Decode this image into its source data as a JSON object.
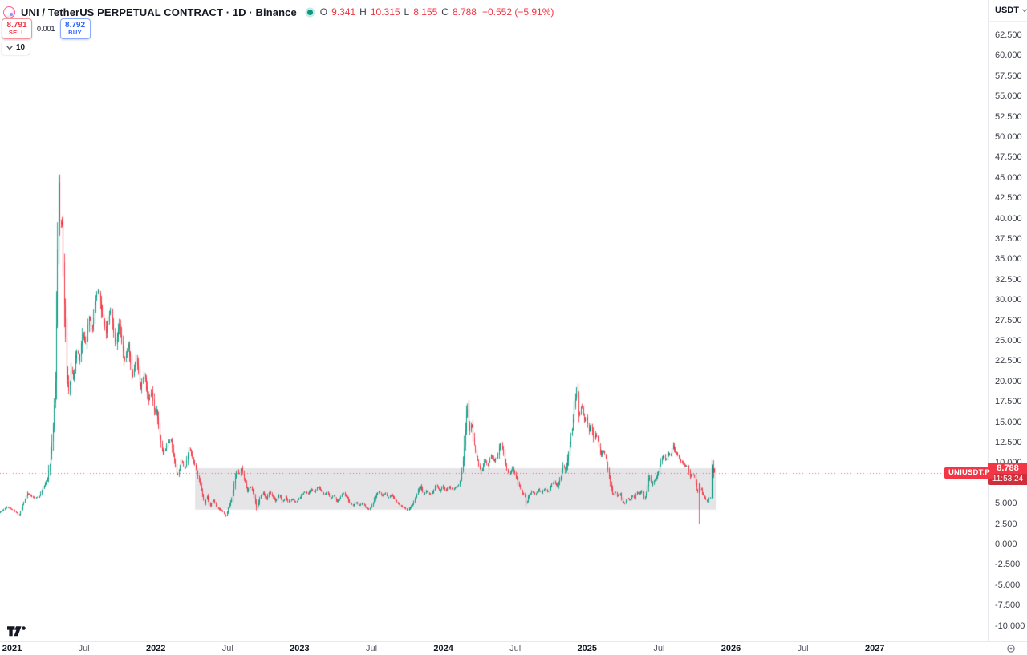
{
  "header": {
    "symbol_title": "UNI / TetherUS PERPETUAL CONTRACT · 1D · Binance",
    "ohlc": {
      "o_label": "O",
      "o": "9.341",
      "h_label": "H",
      "h": "10.315",
      "l_label": "L",
      "l": "8.155",
      "c_label": "C",
      "c": "8.788",
      "change": "−0.552 (−5.91%)"
    }
  },
  "trade_panel": {
    "sell_price": "8.791",
    "sell_label": "SELL",
    "spread": "0.001",
    "buy_price": "8.792",
    "buy_label": "BUY",
    "lot_size": "10"
  },
  "price_axis": {
    "currency": "USDT",
    "ticks": [
      "62.500",
      "60.000",
      "57.500",
      "55.000",
      "52.500",
      "50.000",
      "47.500",
      "45.000",
      "42.500",
      "40.000",
      "37.500",
      "35.000",
      "32.500",
      "30.000",
      "27.500",
      "25.000",
      "22.500",
      "20.000",
      "17.500",
      "15.000",
      "12.500",
      "10.000",
      "5.000",
      "2.500",
      "0.000",
      "-2.500",
      "-5.000",
      "-7.500",
      "-10.000"
    ],
    "last_price": "8.788",
    "countdown": "11:53:24"
  },
  "time_axis": {
    "ticks": [
      {
        "label": "2021",
        "major": true
      },
      {
        "label": "Jul",
        "major": false
      },
      {
        "label": "2022",
        "major": true
      },
      {
        "label": "Jul",
        "major": false
      },
      {
        "label": "2023",
        "major": true
      },
      {
        "label": "Jul",
        "major": false
      },
      {
        "label": "2024",
        "major": true
      },
      {
        "label": "Jul",
        "major": false
      },
      {
        "label": "2025",
        "major": true
      },
      {
        "label": "Jul",
        "major": false
      },
      {
        "label": "2026",
        "major": true
      },
      {
        "label": "Jul",
        "major": false
      },
      {
        "label": "2027",
        "major": true
      }
    ]
  },
  "price_line_label": {
    "symbol": "UNIUSDT.P"
  },
  "colors": {
    "up": "#089981",
    "down": "#f23645",
    "accent_blue": "#2962ff",
    "box_fill": "rgba(145,148,158,0.24)",
    "price_line": "rgba(242,54,69,0.75)"
  },
  "chart_data": {
    "type": "candlestick",
    "symbol": "UNIUSDT.P",
    "exchange": "Binance",
    "interval": "1D",
    "x_unit": "decimal_year",
    "x_range": [
      2020.917,
      2027.75
    ],
    "y_axis_range_visible": [
      -11.9,
      66.8
    ],
    "grid": false,
    "last_price": 8.788,
    "t_start": 2020.917,
    "t_end": 2025.838,
    "range_box": {
      "t1": 2022.267,
      "t2": 2025.878,
      "top": 9.35,
      "bottom": 4.25
    },
    "keypoints": [
      [
        2020.917,
        3.9
      ],
      [
        2020.972,
        4.6
      ],
      [
        2021.017,
        4.2
      ],
      [
        2021.056,
        3.6
      ],
      [
        2021.083,
        4.9
      ],
      [
        2021.111,
        6.3
      ],
      [
        2021.156,
        5.7
      ],
      [
        2021.194,
        5.8
      ],
      [
        2021.222,
        7.0
      ],
      [
        2021.25,
        8.0
      ],
      [
        2021.272,
        10.5
      ],
      [
        2021.289,
        14.0
      ],
      [
        2021.306,
        20.0
      ],
      [
        2021.317,
        30.0
      ],
      [
        2021.328,
        44.9
      ],
      [
        2021.339,
        38.0
      ],
      [
        2021.35,
        41.0
      ],
      [
        2021.367,
        30.0
      ],
      [
        2021.383,
        21.5
      ],
      [
        2021.4,
        18.5
      ],
      [
        2021.417,
        22.0
      ],
      [
        2021.433,
        20.0
      ],
      [
        2021.45,
        24.0
      ],
      [
        2021.472,
        22.5
      ],
      [
        2021.494,
        26.0
      ],
      [
        2021.517,
        24.5
      ],
      [
        2021.539,
        28.0
      ],
      [
        2021.561,
        26.5
      ],
      [
        2021.583,
        30.0
      ],
      [
        2021.606,
        31.5
      ],
      [
        2021.628,
        28.5
      ],
      [
        2021.656,
        26.0
      ],
      [
        2021.689,
        29.0
      ],
      [
        2021.722,
        24.5
      ],
      [
        2021.75,
        27.0
      ],
      [
        2021.783,
        22.5
      ],
      [
        2021.811,
        24.5
      ],
      [
        2021.839,
        20.5
      ],
      [
        2021.867,
        23.0
      ],
      [
        2021.894,
        19.0
      ],
      [
        2021.922,
        21.0
      ],
      [
        2021.95,
        17.5
      ],
      [
        2021.972,
        19.0
      ],
      [
        2021.994,
        16.0
      ],
      [
        2022.006,
        16.5
      ],
      [
        2022.028,
        13.5
      ],
      [
        2022.05,
        11.0
      ],
      [
        2022.078,
        12.2
      ],
      [
        2022.106,
        12.9
      ],
      [
        2022.128,
        10.5
      ],
      [
        2022.15,
        8.4
      ],
      [
        2022.178,
        10.2
      ],
      [
        2022.206,
        9.2
      ],
      [
        2022.233,
        11.9
      ],
      [
        2022.256,
        10.6
      ],
      [
        2022.278,
        9.4
      ],
      [
        2022.3,
        8.0
      ],
      [
        2022.322,
        6.2
      ],
      [
        2022.339,
        5.0
      ],
      [
        2022.356,
        5.9
      ],
      [
        2022.378,
        4.7
      ],
      [
        2022.4,
        5.5
      ],
      [
        2022.422,
        4.6
      ],
      [
        2022.444,
        4.3
      ],
      [
        2022.467,
        3.9
      ],
      [
        2022.489,
        3.5
      ],
      [
        2022.506,
        4.6
      ],
      [
        2022.528,
        5.6
      ],
      [
        2022.544,
        7.5
      ],
      [
        2022.561,
        9.3
      ],
      [
        2022.578,
        8.5
      ],
      [
        2022.594,
        9.5
      ],
      [
        2022.617,
        7.8
      ],
      [
        2022.633,
        6.5
      ],
      [
        2022.656,
        7.1
      ],
      [
        2022.678,
        6.3
      ],
      [
        2022.7,
        4.3
      ],
      [
        2022.722,
        5.7
      ],
      [
        2022.744,
        6.4
      ],
      [
        2022.767,
        5.5
      ],
      [
        2022.789,
        6.6
      ],
      [
        2022.811,
        5.9
      ],
      [
        2022.833,
        5.3
      ],
      [
        2022.856,
        6.1
      ],
      [
        2022.878,
        5.2
      ],
      [
        2022.9,
        5.8
      ],
      [
        2022.922,
        5.1
      ],
      [
        2022.944,
        5.6
      ],
      [
        2022.967,
        5.2
      ],
      [
        2022.989,
        5.5
      ],
      [
        2023.011,
        6.1
      ],
      [
        2023.033,
        6.5
      ],
      [
        2023.056,
        6.2
      ],
      [
        2023.078,
        6.8
      ],
      [
        2023.1,
        6.4
      ],
      [
        2023.122,
        7.1
      ],
      [
        2023.144,
        6.6
      ],
      [
        2023.167,
        6.1
      ],
      [
        2023.189,
        6.5
      ],
      [
        2023.211,
        5.6
      ],
      [
        2023.233,
        6.0
      ],
      [
        2023.256,
        5.2
      ],
      [
        2023.278,
        5.7
      ],
      [
        2023.3,
        6.4
      ],
      [
        2023.322,
        5.8
      ],
      [
        2023.344,
        5.1
      ],
      [
        2023.367,
        4.8
      ],
      [
        2023.389,
        5.2
      ],
      [
        2023.411,
        4.8
      ],
      [
        2023.433,
        5.1
      ],
      [
        2023.456,
        4.5
      ],
      [
        2023.478,
        4.3
      ],
      [
        2023.5,
        4.8
      ],
      [
        2023.522,
        5.9
      ],
      [
        2023.544,
        6.5
      ],
      [
        2023.567,
        6.0
      ],
      [
        2023.589,
        6.3
      ],
      [
        2023.611,
        5.7
      ],
      [
        2023.633,
        6.1
      ],
      [
        2023.656,
        5.5
      ],
      [
        2023.678,
        5.0
      ],
      [
        2023.7,
        4.7
      ],
      [
        2023.722,
        4.5
      ],
      [
        2023.744,
        4.2
      ],
      [
        2023.767,
        4.6
      ],
      [
        2023.789,
        5.3
      ],
      [
        2023.811,
        6.2
      ],
      [
        2023.833,
        7.2
      ],
      [
        2023.856,
        6.2
      ],
      [
        2023.878,
        6.6
      ],
      [
        2023.9,
        6.1
      ],
      [
        2023.922,
        6.5
      ],
      [
        2023.944,
        7.3
      ],
      [
        2023.967,
        6.5
      ],
      [
        2023.989,
        7.2
      ],
      [
        2024.011,
        6.6
      ],
      [
        2024.033,
        7.1
      ],
      [
        2024.056,
        6.7
      ],
      [
        2024.078,
        7.0
      ],
      [
        2024.1,
        7.3
      ],
      [
        2024.117,
        8.2
      ],
      [
        2024.133,
        11.0
      ],
      [
        2024.15,
        15.5
      ],
      [
        2024.161,
        16.8
      ],
      [
        2024.172,
        13.8
      ],
      [
        2024.189,
        14.8
      ],
      [
        2024.206,
        12.2
      ],
      [
        2024.222,
        10.8
      ],
      [
        2024.239,
        9.6
      ],
      [
        2024.256,
        8.9
      ],
      [
        2024.278,
        10.4
      ],
      [
        2024.3,
        9.6
      ],
      [
        2024.322,
        11.0
      ],
      [
        2024.344,
        10.2
      ],
      [
        2024.367,
        10.8
      ],
      [
        2024.389,
        12.6
      ],
      [
        2024.406,
        11.4
      ],
      [
        2024.428,
        9.4
      ],
      [
        2024.45,
        8.6
      ],
      [
        2024.472,
        9.4
      ],
      [
        2024.494,
        8.4
      ],
      [
        2024.517,
        7.2
      ],
      [
        2024.539,
        6.4
      ],
      [
        2024.556,
        5.9
      ],
      [
        2024.567,
        4.9
      ],
      [
        2024.583,
        6.0
      ],
      [
        2024.606,
        6.5
      ],
      [
        2024.628,
        6.1
      ],
      [
        2024.65,
        6.7
      ],
      [
        2024.672,
        6.3
      ],
      [
        2024.694,
        6.9
      ],
      [
        2024.717,
        6.4
      ],
      [
        2024.739,
        7.3
      ],
      [
        2024.761,
        7.7
      ],
      [
        2024.783,
        7.1
      ],
      [
        2024.806,
        8.3
      ],
      [
        2024.822,
        9.7
      ],
      [
        2024.839,
        8.9
      ],
      [
        2024.861,
        11.4
      ],
      [
        2024.883,
        14.2
      ],
      [
        2024.9,
        16.8
      ],
      [
        2024.917,
        19.4
      ],
      [
        2024.933,
        15.4
      ],
      [
        2024.95,
        17.4
      ],
      [
        2024.967,
        15.0
      ],
      [
        2024.983,
        15.7
      ],
      [
        2025.0,
        13.9
      ],
      [
        2025.017,
        14.6
      ],
      [
        2025.033,
        12.9
      ],
      [
        2025.05,
        13.6
      ],
      [
        2025.067,
        12.4
      ],
      [
        2025.083,
        10.9
      ],
      [
        2025.1,
        11.6
      ],
      [
        2025.117,
        10.6
      ],
      [
        2025.133,
        9.2
      ],
      [
        2025.15,
        7.4
      ],
      [
        2025.167,
        5.9
      ],
      [
        2025.183,
        6.5
      ],
      [
        2025.2,
        5.9
      ],
      [
        2025.217,
        6.2
      ],
      [
        2025.233,
        5.2
      ],
      [
        2025.25,
        5.0
      ],
      [
        2025.267,
        5.7
      ],
      [
        2025.283,
        5.4
      ],
      [
        2025.3,
        6.0
      ],
      [
        2025.317,
        5.7
      ],
      [
        2025.333,
        6.4
      ],
      [
        2025.35,
        6.2
      ],
      [
        2025.367,
        6.6
      ],
      [
        2025.383,
        5.5
      ],
      [
        2025.4,
        6.3
      ],
      [
        2025.417,
        8.6
      ],
      [
        2025.433,
        7.2
      ],
      [
        2025.45,
        7.7
      ],
      [
        2025.467,
        8.3
      ],
      [
        2025.483,
        9.1
      ],
      [
        2025.5,
        10.3
      ],
      [
        2025.517,
        11.0
      ],
      [
        2025.533,
        10.3
      ],
      [
        2025.55,
        11.3
      ],
      [
        2025.567,
        10.9
      ],
      [
        2025.583,
        12.2
      ],
      [
        2025.6,
        11.2
      ],
      [
        2025.617,
        11.0
      ],
      [
        2025.633,
        10.3
      ],
      [
        2025.65,
        10.0
      ],
      [
        2025.667,
        9.6
      ],
      [
        2025.683,
        9.8
      ],
      [
        2025.7,
        8.4
      ],
      [
        2025.717,
        8.6
      ],
      [
        2025.733,
        8.3
      ],
      [
        2025.744,
        7.0
      ],
      [
        2025.756,
        6.4
      ],
      [
        2025.772,
        6.9
      ],
      [
        2025.789,
        6.2
      ],
      [
        2025.806,
        5.5
      ],
      [
        2025.822,
        5.2
      ],
      [
        2025.833,
        5.7
      ]
    ],
    "special_candles": [
      {
        "t": 2025.753,
        "o": 7.4,
        "h": 7.6,
        "l": 2.55,
        "c": 6.35
      },
      {
        "t": 2025.845,
        "o": 5.65,
        "h": 10.4,
        "l": 5.5,
        "c": 9.8
      },
      {
        "t": 2025.858,
        "o": 9.341,
        "h": 10.315,
        "l": 8.155,
        "c": 8.788
      }
    ]
  }
}
